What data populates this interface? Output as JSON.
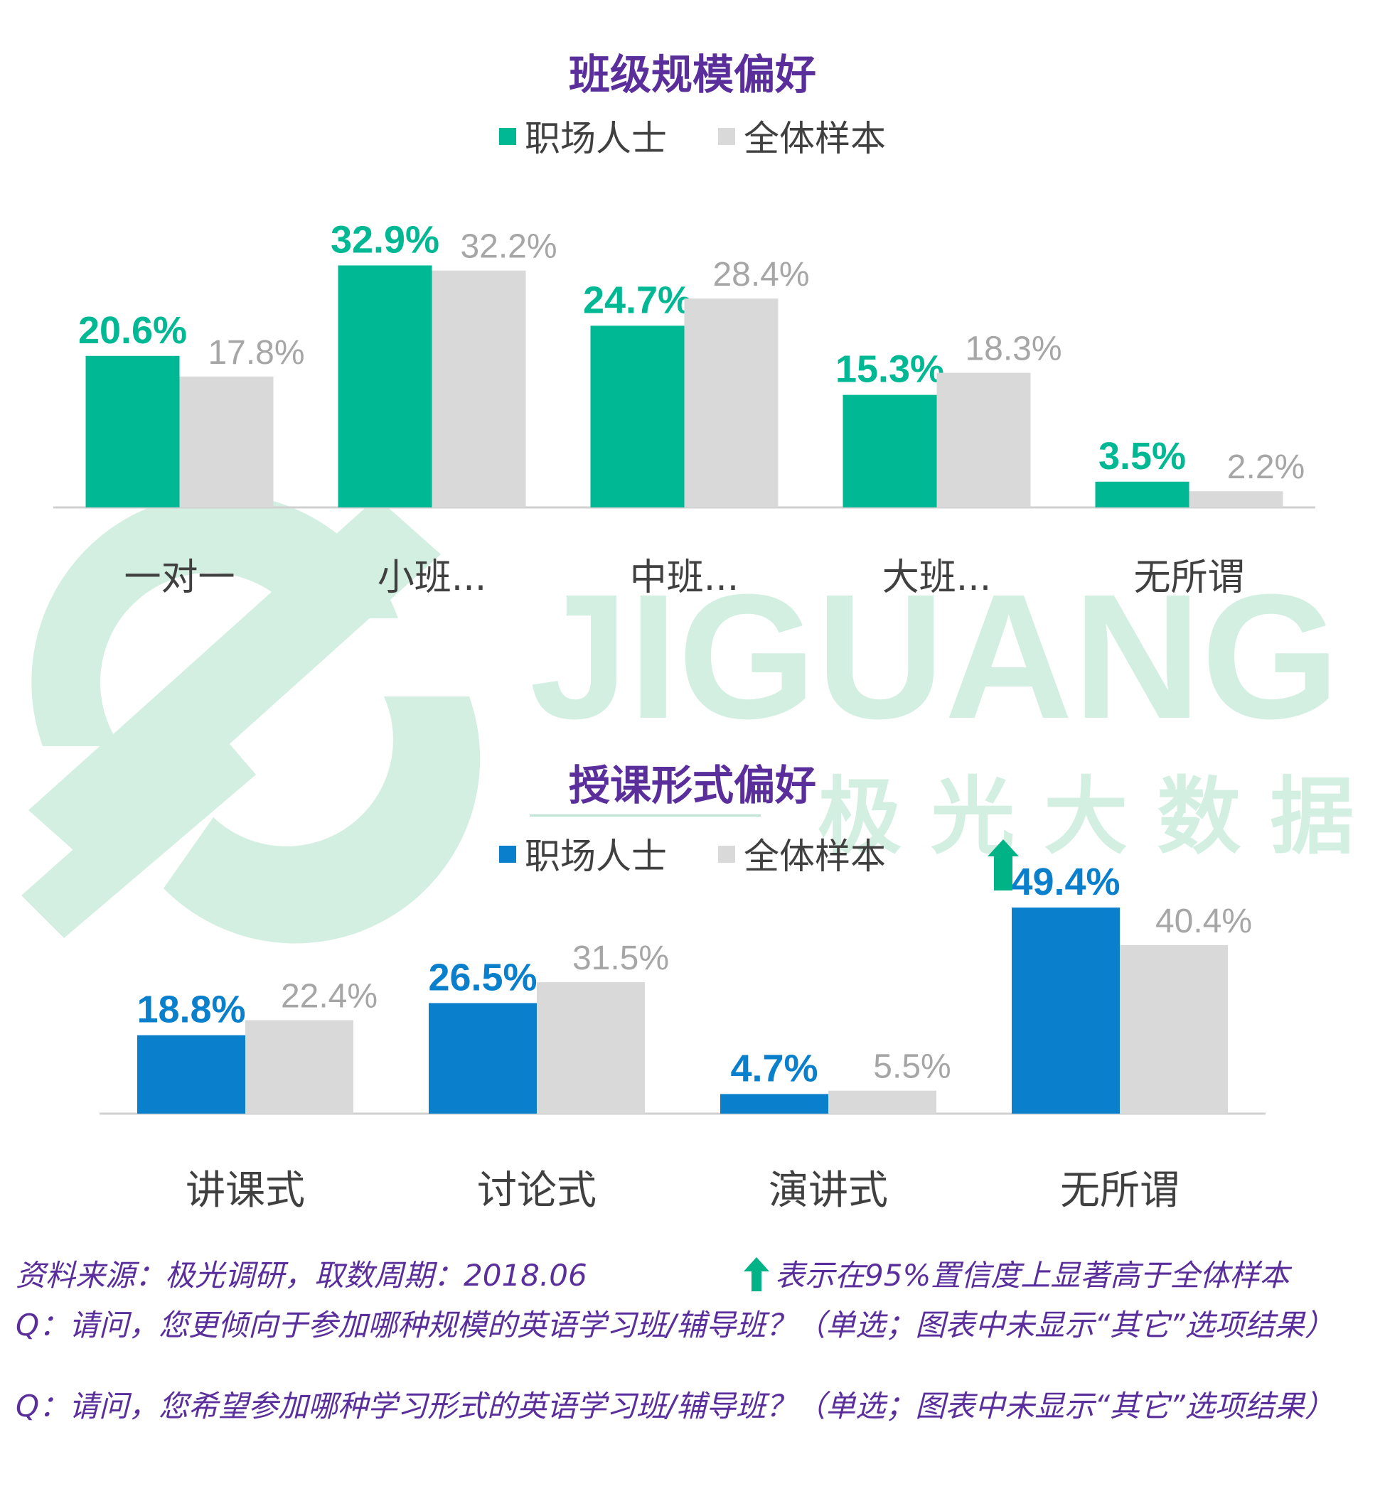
{
  "colors": {
    "title": "#5a2e9b",
    "professional_green": "#00b894",
    "professional_blue": "#0a7fcc",
    "all_sample_gray": "#d9d9d9",
    "all_sample_label": "#a6a6a6",
    "axis_label": "#404040",
    "watermark": "#cfeee0",
    "significance_arrow": "#00b386"
  },
  "watermark": {
    "brand_en": "JIGUANG",
    "brand_cn": "极 光 大 数 据"
  },
  "chart_data": [
    {
      "type": "bar",
      "title": "班级规模偏好",
      "categories": [
        "一对一",
        "小班...",
        "中班...",
        "大班...",
        "无所谓"
      ],
      "series": [
        {
          "name": "职场人士",
          "values": [
            20.6,
            32.9,
            24.7,
            15.3,
            3.5
          ],
          "color": "#00b894",
          "labels": [
            "20.6%",
            "32.9%",
            "24.7%",
            "15.3%",
            "3.5%"
          ]
        },
        {
          "name": "全体样本",
          "values": [
            17.8,
            32.2,
            28.4,
            18.3,
            2.2
          ],
          "color": "#d9d9d9",
          "labels": [
            "17.8%",
            "32.2%",
            "28.4%",
            "18.3%",
            "2.2%"
          ]
        }
      ],
      "ylim": [
        0,
        34
      ],
      "grid": false,
      "legend": "top-center"
    },
    {
      "type": "bar",
      "title": "授课形式偏好",
      "categories": [
        "讲课式",
        "讨论式",
        "演讲式",
        "无所谓"
      ],
      "series": [
        {
          "name": "职场人士",
          "values": [
            18.8,
            26.5,
            4.7,
            49.4
          ],
          "color": "#0a7fcc",
          "labels": [
            "18.8%",
            "26.5%",
            "4.7%",
            "49.4%"
          ]
        },
        {
          "name": "全体样本",
          "values": [
            22.4,
            31.5,
            5.5,
            40.4
          ],
          "color": "#d9d9d9",
          "labels": [
            "22.4%",
            "31.5%",
            "5.5%",
            "40.4%"
          ]
        }
      ],
      "significant_higher_index": 3,
      "ylim": [
        0,
        50
      ],
      "grid": false,
      "legend": "top-center"
    }
  ],
  "footer": {
    "source": "资料来源：极光调研，取数周期：2018.06",
    "significance_note": "表示在95%置信度上显著高于全体样本",
    "q1": "Q：请问，您更倾向于参加哪种规模的英语学习班/辅导班？（单选；图表中未显示“其它”选项结果）",
    "q2": "Q：请问，您希望参加哪种学习形式的英语学习班/辅导班？（单选；图表中未显示“其它”选项结果）"
  }
}
